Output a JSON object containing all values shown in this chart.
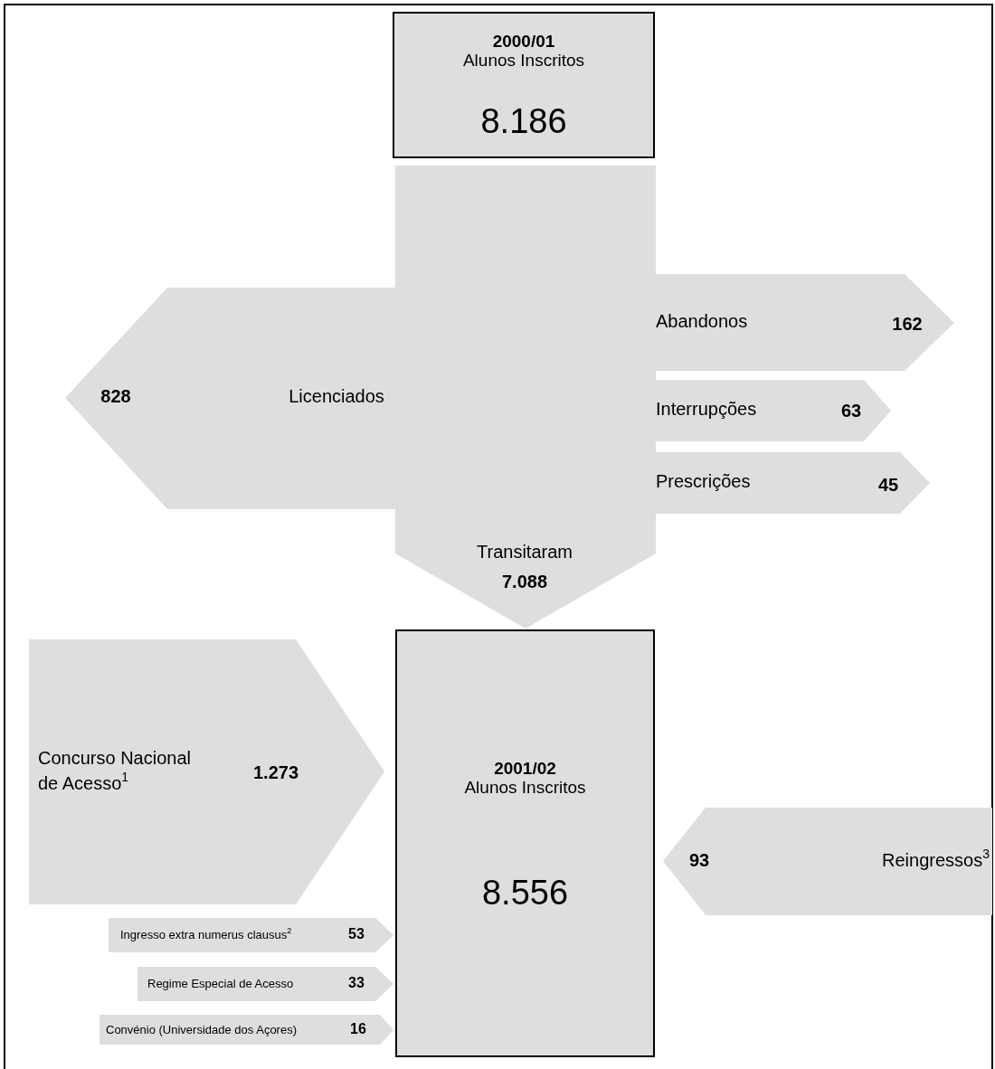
{
  "chart_data": {
    "type": "other",
    "categories": [
      "2000/01\nAlunos Inscritos",
      "Licenciados",
      "Abandonos",
      "Interrupções",
      "Prescrições",
      "Transitaram",
      "Concurso Nacional\nde Acesso$^{1}$",
      "Ingresso extra numerus clausus$^{2}$",
      "Regime Especial de Acesso",
      "Convénio (Universidade dos Açores)",
      "Reingressos$^{3}$",
      "2001/02\nAlunos Inscritos"
    ],
    "values": [
      8186,
      828,
      162,
      63,
      45,
      7088,
      1273,
      53,
      33,
      16,
      93,
      8556
    ],
    "value_labels": [
      "8.186",
      "828",
      "162",
      "63",
      "45",
      "7.088",
      "1.273",
      "53",
      "33",
      "16",
      "93",
      "8.556"
    ]
  }
}
